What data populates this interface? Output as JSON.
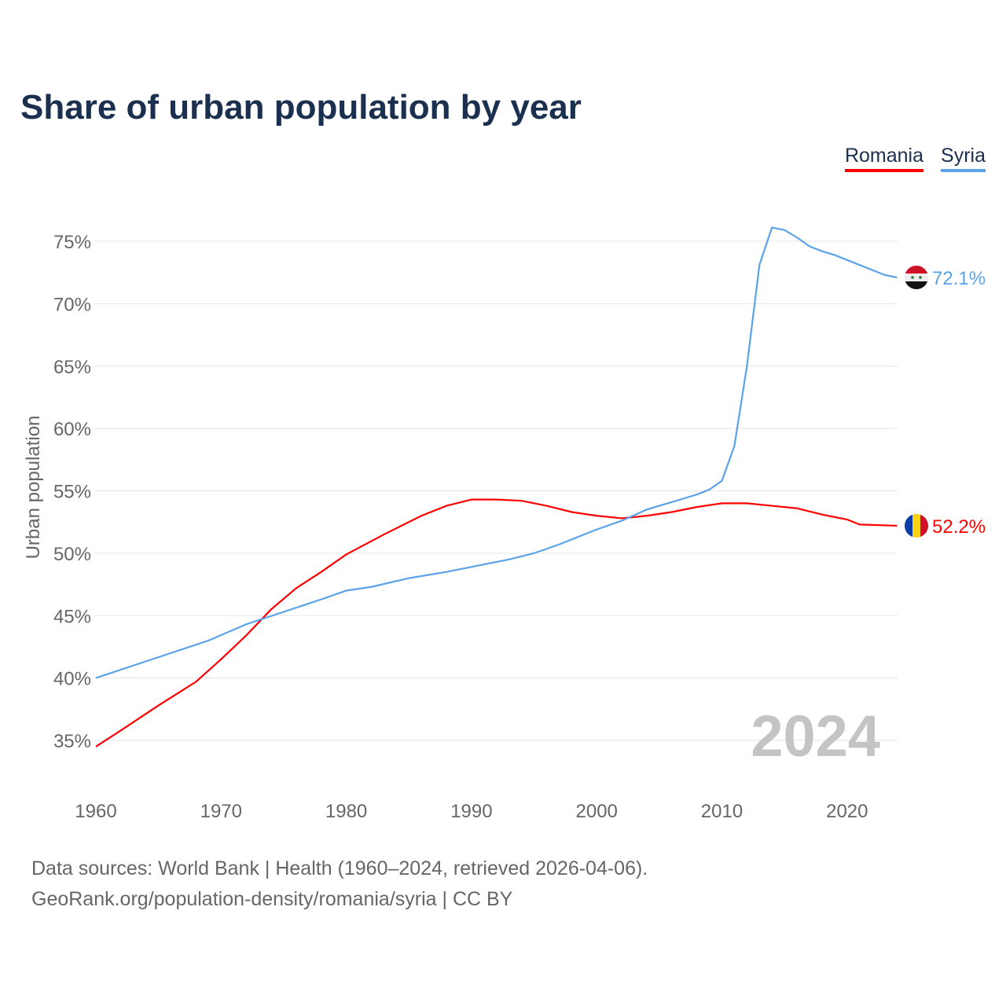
{
  "chart_data": {
    "type": "line",
    "title": "Share of urban population by year",
    "ylabel": "Urban population",
    "xlabel": "",
    "xlim": [
      1960,
      2024
    ],
    "ylim": [
      32,
      77
    ],
    "x_ticks": [
      "1960",
      "1970",
      "1980",
      "1990",
      "2000",
      "2010",
      "2020"
    ],
    "y_ticks": [
      "35%",
      "40%",
      "45%",
      "50%",
      "55%",
      "60%",
      "65%",
      "70%",
      "75%"
    ],
    "grid": "horizontal",
    "legend_position": "top-right",
    "watermark_year": "2024",
    "series": [
      {
        "name": "Romania",
        "color": "#ff0000",
        "end_label": "52.2%",
        "x": [
          1960,
          1962,
          1965,
          1968,
          1970,
          1972,
          1974,
          1976,
          1978,
          1980,
          1983,
          1986,
          1988,
          1990,
          1992,
          1994,
          1996,
          1998,
          2000,
          2002,
          2004,
          2006,
          2008,
          2010,
          2012,
          2014,
          2016,
          2018,
          2020,
          2021,
          2024
        ],
        "values": [
          34.5,
          35.8,
          37.8,
          39.7,
          41.5,
          43.4,
          45.5,
          47.2,
          48.5,
          49.9,
          51.5,
          53.0,
          53.8,
          54.3,
          54.3,
          54.2,
          53.8,
          53.3,
          53.0,
          52.8,
          53.0,
          53.3,
          53.7,
          54.0,
          54.0,
          53.8,
          53.6,
          53.1,
          52.7,
          52.3,
          52.2
        ]
      },
      {
        "name": "Syria",
        "color": "#5ba3e8",
        "end_label": "72.1%",
        "x": [
          1960,
          1963,
          1966,
          1969,
          1972,
          1975,
          1978,
          1980,
          1982,
          1985,
          1988,
          1990,
          1993,
          1995,
          1997,
          2000,
          2002,
          2004,
          2006,
          2008,
          2009,
          2010,
          2011,
          2012,
          2013,
          2014,
          2015,
          2016,
          2017,
          2018,
          2019,
          2020,
          2022,
          2023,
          2024
        ],
        "values": [
          40.0,
          41.0,
          42.0,
          43.0,
          44.3,
          45.3,
          46.3,
          47.0,
          47.3,
          48.0,
          48.5,
          48.9,
          49.5,
          50.0,
          50.7,
          51.9,
          52.6,
          53.5,
          54.1,
          54.7,
          55.1,
          55.8,
          58.6,
          65.0,
          73.1,
          76.1,
          75.9,
          75.3,
          74.6,
          74.2,
          73.9,
          73.5,
          72.7,
          72.3,
          72.1
        ]
      }
    ]
  },
  "footer": {
    "line1": "Data sources: World Bank | Health (1960–2024, retrieved 2026-04-06).",
    "line2": "GeoRank.org/population-density/romania/syria | CC BY"
  }
}
